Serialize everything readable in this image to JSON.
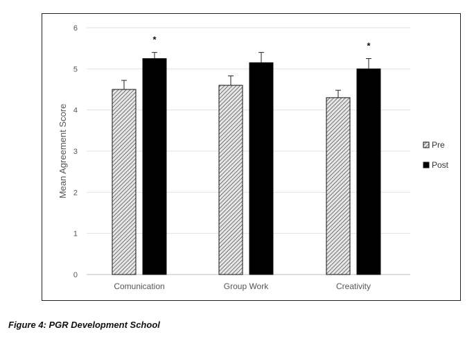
{
  "caption": "Figure 4: PGR Development School",
  "chart_data": {
    "type": "bar",
    "title": "",
    "xlabel": "",
    "ylabel": "Mean Agreement Score",
    "ylim": [
      0,
      6
    ],
    "yticks": [
      0,
      1,
      2,
      3,
      4,
      5,
      6
    ],
    "grid": true,
    "legend_position": "right",
    "categories": [
      "Comunication",
      "Group Work",
      "Creativity"
    ],
    "series": [
      {
        "name": "Pre",
        "values": [
          4.5,
          4.6,
          4.3
        ],
        "errors": [
          0.22,
          0.23,
          0.18
        ],
        "fill": "hatched",
        "color": "#cfcfcf"
      },
      {
        "name": "Post",
        "values": [
          5.25,
          5.15,
          5.0
        ],
        "errors": [
          0.15,
          0.25,
          0.25
        ],
        "fill": "solid",
        "color": "#000000"
      }
    ],
    "significance_marker": "*",
    "significant_categories": [
      "Comunication",
      "Creativity"
    ]
  }
}
